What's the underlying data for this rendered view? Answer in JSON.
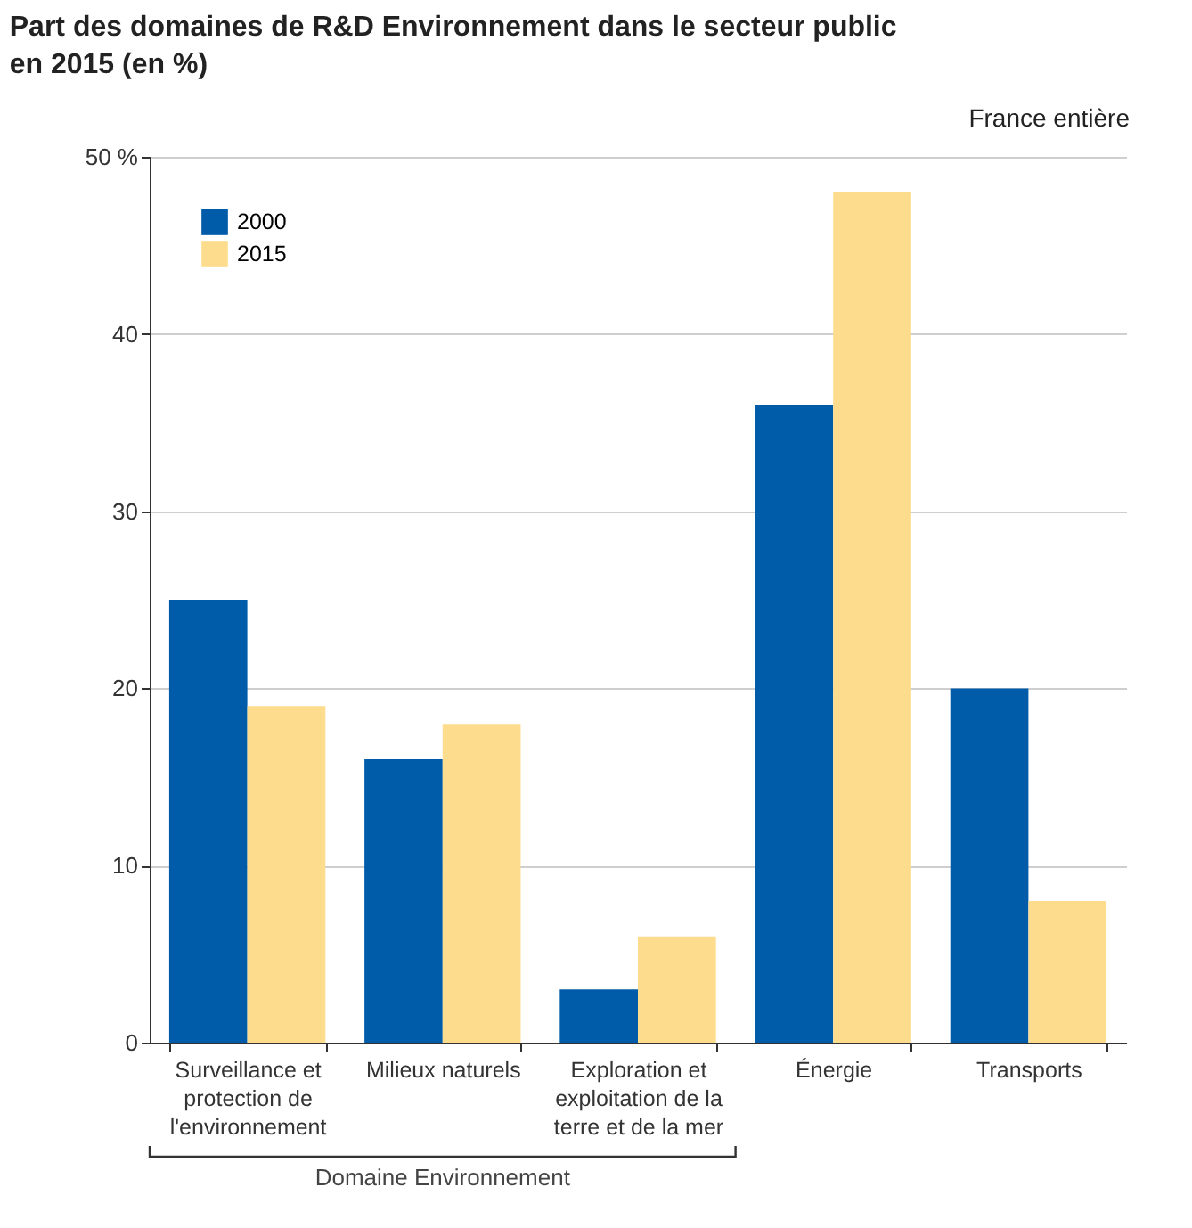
{
  "chart_data": {
    "type": "bar",
    "title": "Part des domaines de R&D Environnement dans le secteur public en 2015 (en %)",
    "subtitle": "France entière",
    "categories": [
      "Surveillance et protection de l'environnement",
      "Milieux naturels",
      "Exploration et exploitation de la terre et de la mer",
      "Énergie",
      "Transports"
    ],
    "series": [
      {
        "name": "2000",
        "color": "#005ca9",
        "values": [
          25,
          16,
          3,
          36,
          20
        ]
      },
      {
        "name": "2015",
        "color": "#fddc8e",
        "values": [
          19,
          18,
          6,
          48,
          8
        ]
      }
    ],
    "ylim": [
      0,
      50
    ],
    "yticks": [
      0,
      10,
      20,
      30,
      40,
      {
        "value": 50,
        "label": "50 %"
      }
    ],
    "grid": "y",
    "legend": "top left",
    "annotations": [
      "Domaine Environnement"
    ]
  }
}
